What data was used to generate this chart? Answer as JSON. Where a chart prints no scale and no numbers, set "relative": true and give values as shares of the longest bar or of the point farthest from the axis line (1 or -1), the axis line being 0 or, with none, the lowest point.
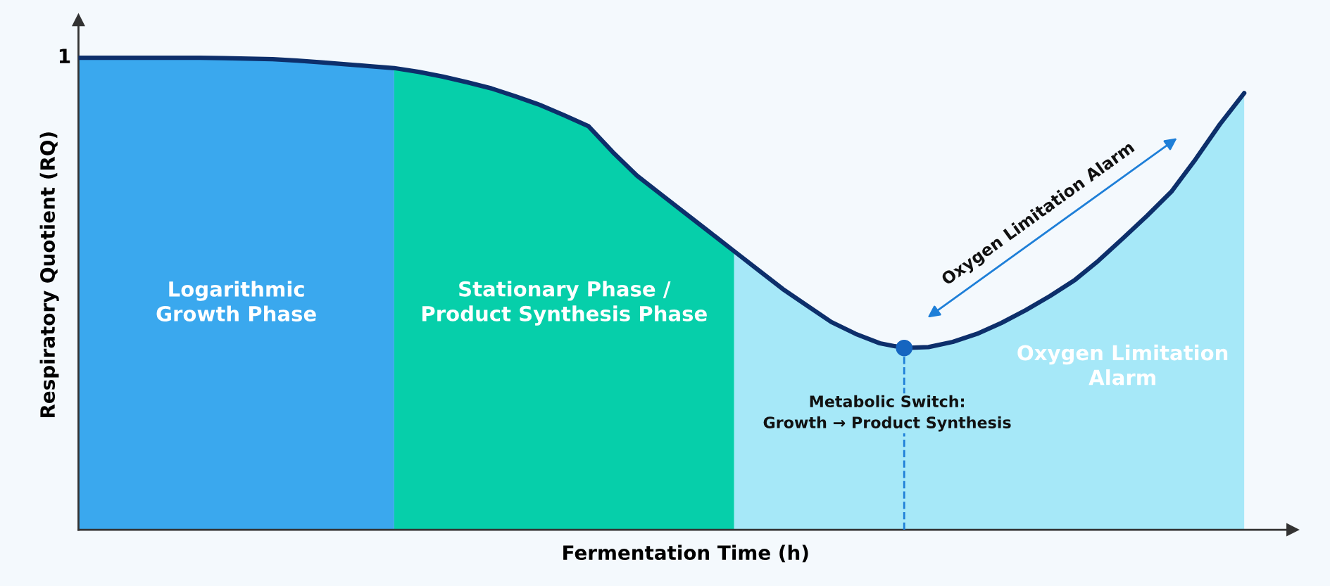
{
  "chart_data": {
    "type": "line",
    "relative": true,
    "xlabel": "Fermentation Time (h)",
    "ylabel": "Respiratory Quotient (RQ)",
    "categories": [
      null,
      null,
      null,
      null,
      null,
      null,
      null,
      null,
      null,
      null,
      null,
      null,
      null,
      null,
      null,
      null,
      null,
      null,
      null,
      null,
      null,
      null,
      null,
      null,
      null,
      null,
      null,
      null,
      null,
      null,
      null,
      null,
      null,
      null,
      null,
      null,
      null,
      null,
      null,
      null,
      null,
      null,
      null,
      null,
      null,
      null,
      null,
      null,
      null
    ],
    "series": [
      {
        "color": "#0d2f6b",
        "values": [
          1.0,
          1.0,
          1.0,
          1.0,
          1.0,
          1.0,
          0.999,
          0.998,
          0.997,
          0.994,
          0.99,
          0.986,
          0.982,
          0.978,
          0.97,
          0.96,
          0.948,
          0.935,
          0.918,
          0.9,
          0.878,
          0.855,
          0.8,
          0.75,
          0.71,
          0.67,
          0.63,
          0.59,
          0.55,
          0.51,
          0.475,
          0.44,
          0.415,
          0.395,
          0.385,
          0.387,
          0.398,
          0.415,
          0.438,
          0.465,
          0.495,
          0.528,
          0.57,
          0.617,
          0.665,
          0.716,
          0.785,
          0.859,
          0.925
        ]
      }
    ],
    "annotations": [
      "1",
      "Metabolic Switch:\nGrowth → Product Synthesis",
      "Oxygen Limitation Alarm",
      "Logarithmic\nGrowth Phase",
      "Stationary Phase /\nProduct Synthesis Phase",
      "Oxygen Limitation\nAlarm"
    ]
  }
}
